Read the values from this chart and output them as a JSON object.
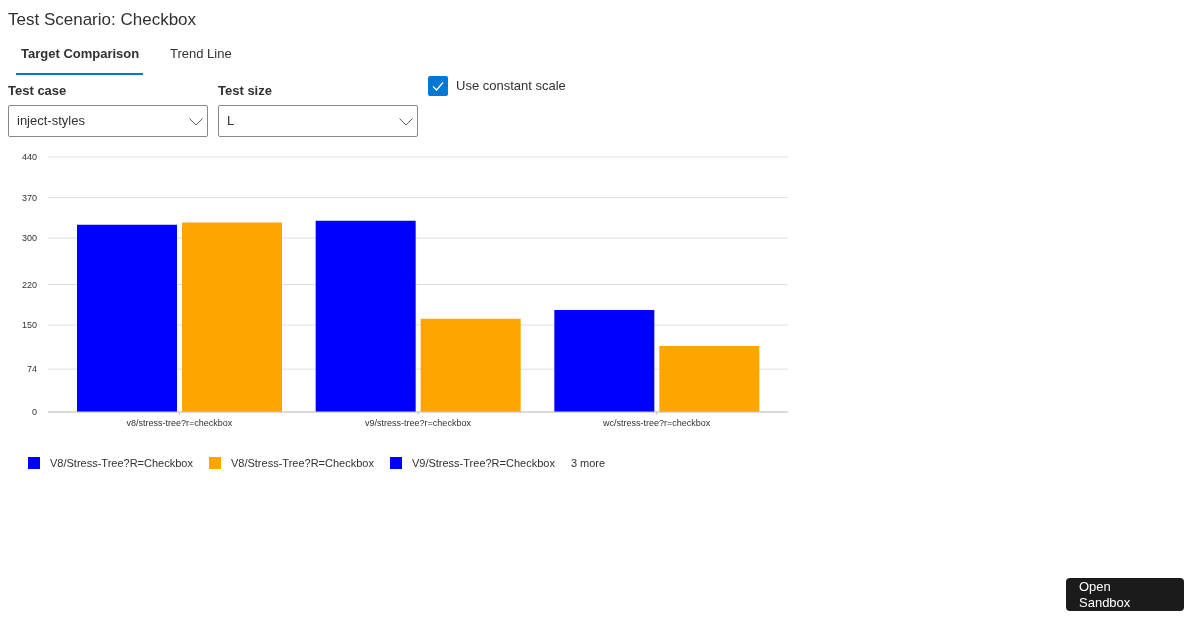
{
  "chart_data": {
    "type": "bar",
    "title": "Test Scenario: Checkbox",
    "categories": [
      "v8/stress-tree?r=checkbox",
      "v9/stress-tree?r=checkbox",
      "wc/stress-tree?r=checkbox"
    ],
    "series": [
      {
        "name": "V8/Stress-Tree?R=Checkbox",
        "color": "#0000ff",
        "values": [
          323,
          null,
          null
        ]
      },
      {
        "name": "V8/Stress-Tree?R=Checkbox",
        "color": "#ffa500",
        "values": [
          327,
          null,
          null
        ]
      },
      {
        "name": "V9/Stress-Tree?R=Checkbox",
        "color": "#0000ff",
        "values": [
          null,
          330,
          null
        ]
      },
      {
        "color": "#ffa500",
        "values": [
          null,
          161,
          null
        ]
      },
      {
        "color": "#0000ff",
        "values": [
          null,
          null,
          176
        ]
      },
      {
        "color": "#ffa500",
        "values": [
          null,
          null,
          114
        ]
      }
    ],
    "ylim": [
      0,
      440
    ],
    "yticks": [
      0,
      74,
      150,
      220,
      300,
      370,
      440
    ],
    "grid": "y",
    "legend": "bottom",
    "annotations": [
      "Target Comparison",
      "Trend Line",
      "Test case",
      "inject-styles",
      "Test size",
      "L",
      "Use constant scale",
      "3 more",
      "Open Sandbox"
    ]
  }
}
